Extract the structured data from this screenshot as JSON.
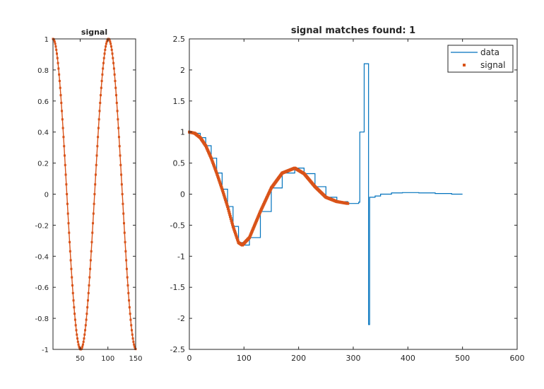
{
  "chart_data": [
    {
      "type": "line",
      "title": "signal",
      "xlim": [
        1,
        150
      ],
      "ylim": [
        -1,
        1
      ],
      "xticks": [
        50,
        100,
        150
      ],
      "yticks": [
        -1,
        -0.8,
        -0.6,
        -0.4,
        -0.2,
        0,
        0.2,
        0.4,
        0.6,
        0.8,
        1
      ],
      "xtick_labels": [
        "50",
        "100",
        "150"
      ],
      "ytick_labels": [
        "-1",
        "-0.8",
        "-0.6",
        "-0.4",
        "-0.2",
        "0",
        "0.2",
        "0.4",
        "0.6",
        "0.8",
        "1"
      ],
      "grid": false,
      "series": [
        {
          "name": "signal",
          "style": "line-with-markers",
          "color": "#D95319",
          "formula": "y = cos(2*pi*(x-1)/100)",
          "x": [
            1,
            13.5,
            26,
            38.5,
            51,
            63.5,
            76,
            88.5,
            101,
            113.5,
            126,
            138.5,
            151
          ],
          "y": [
            1,
            0.71,
            0,
            -0.71,
            -1,
            -0.71,
            0,
            0.71,
            1,
            0.71,
            0,
            -0.71,
            -1
          ]
        }
      ]
    },
    {
      "type": "line",
      "title": "signal matches found: 1",
      "xlim": [
        0,
        600
      ],
      "ylim": [
        -2.5,
        2.5
      ],
      "xticks": [
        0,
        100,
        200,
        300,
        400,
        500,
        600
      ],
      "yticks": [
        -2.5,
        -2,
        -1.5,
        -1,
        -0.5,
        0,
        0.5,
        1,
        1.5,
        2,
        2.5
      ],
      "xtick_labels": [
        "0",
        "100",
        "200",
        "300",
        "400",
        "500",
        "600"
      ],
      "ytick_labels": [
        "-2.5",
        "-2",
        "-1.5",
        "-1",
        "-0.5",
        "0",
        "0.5",
        "1",
        "1.5",
        "2",
        "2.5"
      ],
      "grid": false,
      "legend": {
        "location": "top-right",
        "entries": [
          {
            "label": "data",
            "color": "#0072BD",
            "style": "line"
          },
          {
            "label": "signal",
            "color": "#D95319",
            "style": "marker"
          }
        ]
      },
      "series": [
        {
          "name": "data",
          "style": "stairs",
          "color": "#0072BD",
          "x": [
            0,
            10,
            20,
            30,
            40,
            50,
            60,
            70,
            80,
            90,
            97,
            110,
            130,
            150,
            170,
            193,
            210,
            230,
            250,
            270,
            290,
            310,
            312,
            320,
            321,
            328,
            330,
            340,
            350,
            370,
            390,
            420,
            450,
            480,
            500
          ],
          "y": [
            1,
            0.98,
            0.91,
            0.78,
            0.58,
            0.34,
            0.08,
            -0.2,
            -0.52,
            -0.78,
            -0.82,
            -0.7,
            -0.28,
            0.1,
            0.34,
            0.42,
            0.33,
            0.12,
            -0.05,
            -0.12,
            -0.15,
            -0.13,
            1.0,
            2.1,
            2.1,
            -2.1,
            -0.05,
            -0.03,
            0.0,
            0.02,
            0.025,
            0.02,
            0.01,
            0.0,
            0.0
          ]
        },
        {
          "name": "signal",
          "style": "marker",
          "color": "#D95319",
          "x": [
            0,
            10,
            20,
            30,
            40,
            50,
            60,
            70,
            80,
            90,
            97,
            110,
            130,
            150,
            170,
            193,
            210,
            230,
            250,
            270,
            290
          ],
          "y": [
            1,
            0.98,
            0.91,
            0.78,
            0.58,
            0.34,
            0.08,
            -0.2,
            -0.52,
            -0.78,
            -0.82,
            -0.7,
            -0.28,
            0.1,
            0.34,
            0.42,
            0.33,
            0.12,
            -0.05,
            -0.12,
            -0.15
          ]
        }
      ]
    }
  ]
}
